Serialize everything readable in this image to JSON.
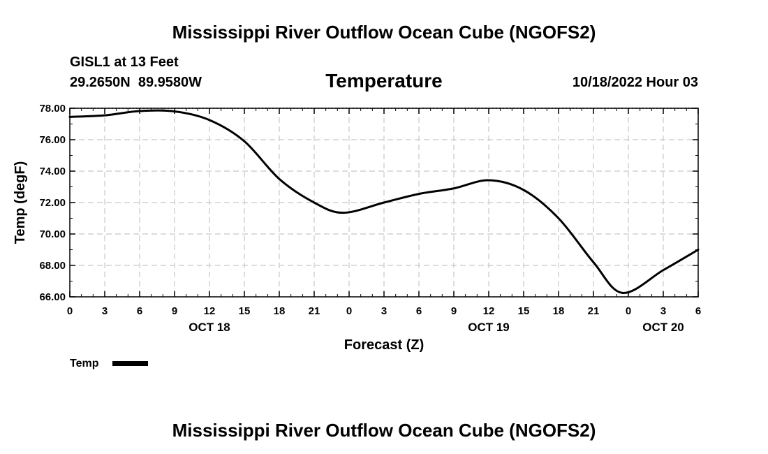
{
  "page": {
    "title": "Mississippi River Outflow Ocean Cube (NGOFS2)",
    "footer_title": "Mississippi River Outflow Ocean Cube (NGOFS2)"
  },
  "station": {
    "name": "GISL1 at 13 Feet",
    "coords": "29.2650N  89.9580W",
    "datetime": "10/18/2022 Hour 03"
  },
  "chart_data": {
    "type": "line",
    "title": "Temperature",
    "xlabel": "Forecast (Z)",
    "ylabel": "Temp (degF)",
    "xlim": [
      0,
      54
    ],
    "ylim": [
      66,
      78
    ],
    "grid": true,
    "x_ticks": [
      0,
      3,
      6,
      9,
      12,
      15,
      18,
      21,
      24,
      27,
      30,
      33,
      36,
      39,
      42,
      45,
      48,
      51,
      54
    ],
    "x_tick_labels": [
      "0",
      "3",
      "6",
      "9",
      "12",
      "15",
      "18",
      "21",
      "0",
      "3",
      "6",
      "9",
      "12",
      "15",
      "18",
      "21",
      "0",
      "3",
      "6"
    ],
    "y_ticks": [
      66,
      68,
      70,
      72,
      74,
      76,
      78
    ],
    "y_tick_labels": [
      "66.00",
      "68.00",
      "70.00",
      "72.00",
      "74.00",
      "76.00",
      "78.00"
    ],
    "day_labels": [
      {
        "label": "OCT 18",
        "x": 12
      },
      {
        "label": "OCT 19",
        "x": 36
      },
      {
        "label": "OCT 20",
        "x": 51
      }
    ],
    "legend": {
      "position": "bottom-left",
      "label": "Temp"
    },
    "series": [
      {
        "name": "Temp",
        "x": [
          0,
          3,
          6,
          9,
          12,
          15,
          18,
          21,
          23.5,
          27,
          30,
          33,
          36,
          39,
          42,
          45,
          47.5,
          51,
          54
        ],
        "y": [
          77.45,
          77.55,
          77.82,
          77.8,
          77.25,
          75.9,
          73.5,
          72.0,
          71.35,
          72.0,
          72.55,
          72.9,
          73.42,
          72.8,
          71.0,
          68.2,
          66.25,
          67.7,
          69.0
        ]
      }
    ]
  }
}
